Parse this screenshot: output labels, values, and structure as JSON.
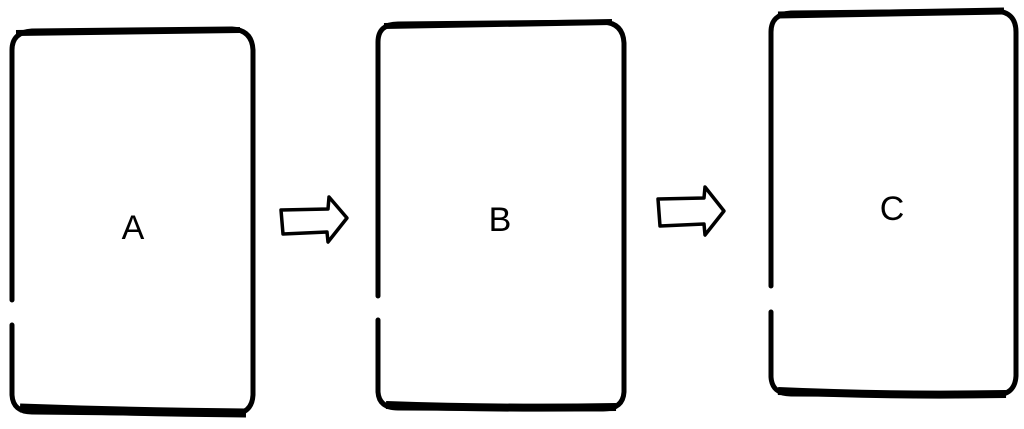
{
  "diagram": {
    "boxes": [
      {
        "label": "A"
      },
      {
        "label": "B"
      },
      {
        "label": "C"
      }
    ],
    "colors": {
      "stroke": "#000000",
      "fill": "#ffffff",
      "background": "#ffffff"
    },
    "icons": [
      "right-arrow-icon",
      "right-arrow-icon"
    ]
  }
}
